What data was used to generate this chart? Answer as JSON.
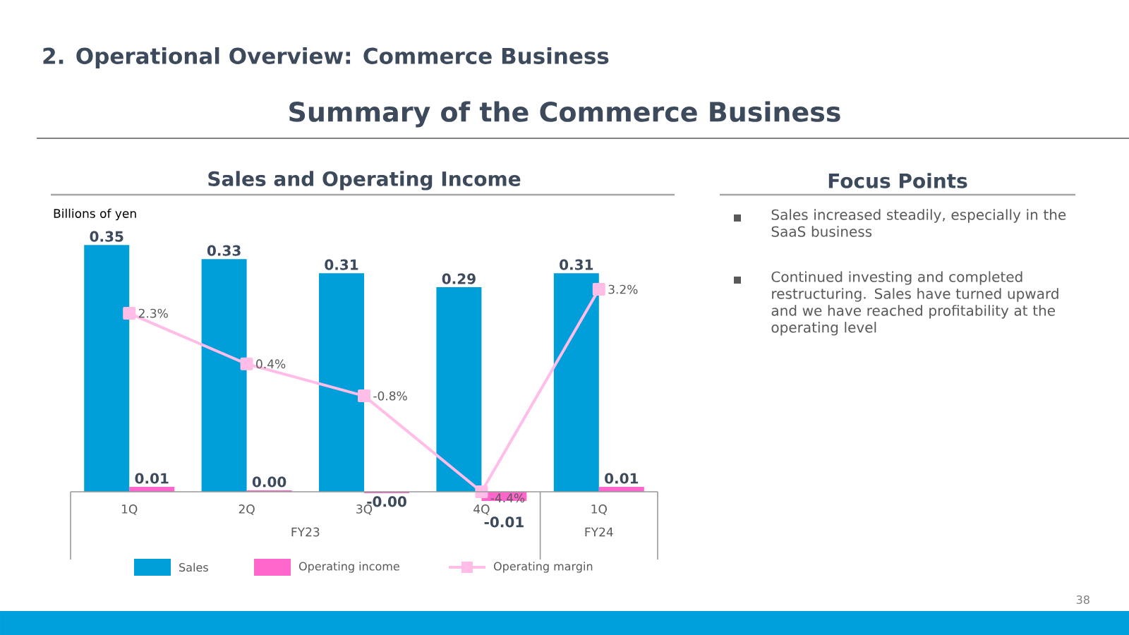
{
  "chart_data": [
    {
      "type": "other",
      "title": "2. Operational Overview: Commerce Business",
      "subtitle": "Summary of the Commerce Business",
      "annotations": [
        "38"
      ]
    },
    {
      "type": "bar",
      "title": "Sales and Operating Income",
      "ylabel": "Billions of yen",
      "categories": [
        "1Q",
        "2Q",
        "3Q",
        "4Q",
        "1Q"
      ],
      "annotations": [
        "FY23",
        "FY24"
      ],
      "legend": "bottom",
      "tick_labels": "x",
      "series": [
        {
          "name": "Sales",
          "color": "#009fda",
          "values": [
            0.35,
            0.33,
            0.31,
            0.29,
            0.31
          ],
          "value_labels": [
            "0.35",
            "0.33",
            "0.31",
            "0.29",
            "0.31"
          ]
        },
        {
          "name": "Operating income",
          "color": "#ff66cc",
          "values": [
            0.007,
            0.002,
            -0.002,
            -0.013,
            0.007
          ],
          "value_labels": [
            "0.01",
            "0.00",
            "-0.00",
            "-0.01",
            "0.01"
          ]
        },
        {
          "name": "Operating margin",
          "type": "line",
          "axis": "y2",
          "marker": "square",
          "color": "#ffbde8",
          "values": [
            2.3,
            0.4,
            -0.8,
            -4.4,
            3.2
          ],
          "value_labels": [
            "2.3%",
            "0.4%",
            "-0.8%",
            "-4.4%",
            "3.2%"
          ]
        }
      ]
    },
    {
      "type": "other",
      "title": "Focus Points",
      "annotations": [
        "Sales increased steadily, especially in the SaaS business",
        "Continued investing and completed restructuring. Sales have turned upward and we have reached profitability at the operating level"
      ]
    }
  ]
}
